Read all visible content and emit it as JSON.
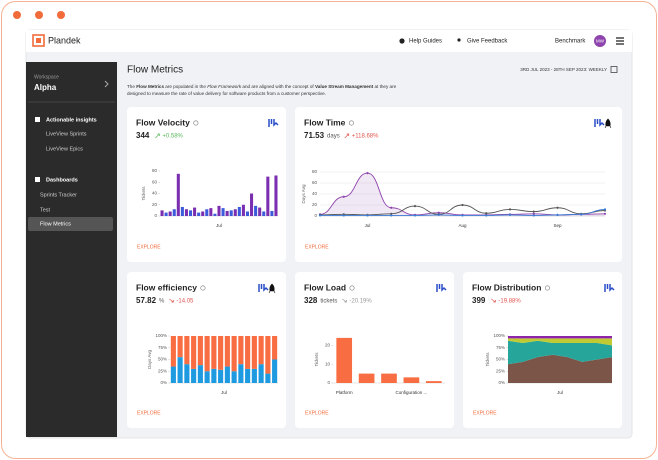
{
  "window": {
    "logo": "Plandek",
    "nav": [
      "Help Guides",
      "Give Feedback"
    ],
    "benchmark": "Benchmark",
    "avatar": "MW"
  },
  "sidebar": {
    "workspace_label": "Workspace",
    "workspace": "Alpha",
    "sections": [
      {
        "title": "Actionable insights",
        "items": [
          "LiveView Sprints",
          "LiveView Epics"
        ]
      },
      {
        "title": "Dashboards",
        "items": [
          "Sprints Tracker",
          "Test",
          "Flow Metrics"
        ]
      }
    ]
  },
  "page": {
    "title": "Flow Metrics",
    "date_range": "3RD JUL 2023 - 28TH SEP 2023: WEEKLY",
    "description": {
      "line1": [
        "The ",
        "Flow Metrics",
        " are populated in the ",
        "Flow Framework",
        " and are aligned with the concept of ",
        "Value Stream Management",
        " at they are"
      ],
      "line2": "designed to measure the rate of value delivery for software products from a customer perspective."
    }
  },
  "cards": [
    {
      "title": "Flow Velocity",
      "value": "344",
      "change": "+0.58%",
      "change_color": "#5cb85c",
      "explore": "EXPLORE",
      "chart": {
        "type": "bar",
        "y_label": "Tickets",
        "x_label": "Jul",
        "ylim": [
          0,
          80
        ],
        "yticks": [
          0,
          20,
          40,
          60,
          80
        ],
        "series": [
          {
            "color": "#7b2fb0",
            "values": [
              10,
              null,
              8,
              null,
              75,
              null,
              12,
              null,
              15,
              null,
              8,
              null,
              14,
              null,
              18,
              null,
              9,
              null,
              12,
              null,
              20,
              null,
              40,
              null,
              15,
              null,
              70,
              null,
              72
            ]
          },
          {
            "color": "#3b5bdb",
            "values": [
              null,
              6,
              null,
              12,
              null,
              16,
              null,
              10,
              null,
              6,
              null,
              12,
              null,
              4,
              null,
              14,
              null,
              10,
              null,
              16,
              null,
              8,
              null,
              18,
              null,
              8,
              null,
              9,
              null
            ]
          }
        ]
      }
    },
    {
      "title": "Flow Time",
      "value": "71.53",
      "unit": "days",
      "change": "+118.68%",
      "change_color": "#e0554f",
      "explore": "EXPLORE",
      "chart": {
        "type": "line",
        "y_label": "Days Avg",
        "ylim": [
          0,
          80
        ],
        "yticks": [
          0,
          20,
          40,
          60,
          80
        ],
        "grid": true,
        "categories": [
          null,
          null,
          "Jul",
          null,
          null,
          null,
          "Aug",
          null,
          null,
          null,
          "Sep",
          null,
          null
        ],
        "series": [
          {
            "color": "#8e44ad",
            "area": true,
            "values": [
              3,
              35,
              78,
              15,
              2,
              6,
              2,
              2,
              3,
              4,
              2,
              3,
              4
            ]
          },
          {
            "color": "#555555",
            "values": [
              2,
              3,
              2,
              4,
              18,
              3,
              20,
              5,
              12,
              8,
              15,
              4,
              10
            ]
          },
          {
            "color": "#3b7dd8",
            "values": [
              1,
              1,
              1,
              1,
              1,
              2,
              1,
              1,
              2,
              1,
              2,
              3,
              12
            ]
          }
        ]
      }
    },
    {
      "title": "Flow efficiency",
      "value": "57.82",
      "unit": "%",
      "change": "-14.05",
      "change_color": "#e0554f",
      "explore": "EXPLORE",
      "chart": {
        "type": "stacked_bar",
        "y_label": "Days Avg",
        "x_label": "Jul",
        "ylim": [
          0,
          100
        ],
        "yticks": [
          {
            "value": 0,
            "label": "0%"
          },
          {
            "value": 25,
            "label": "25%"
          },
          {
            "value": 50,
            "label": "50%"
          },
          {
            "value": 75,
            "label": "75%"
          },
          {
            "value": 100,
            "label": "100%"
          }
        ],
        "series": [
          {
            "color": "#1e9be0",
            "values": [
              35,
              55,
              40,
              30,
              38,
              25,
              30,
              28,
              35,
              25,
              40,
              30,
              30,
              40,
              20,
              50
            ]
          },
          {
            "color": "#f96d43",
            "values": [
              65,
              45,
              60,
              70,
              62,
              75,
              70,
              72,
              65,
              75,
              60,
              70,
              70,
              60,
              80,
              50
            ]
          }
        ]
      }
    },
    {
      "title": "Flow Load",
      "value": "328",
      "unit": "tickets",
      "change": "-20.19%",
      "change_color": "#999999",
      "explore": "EXPLORE",
      "chart": {
        "type": "bar",
        "y_label": "Tickets",
        "ylim": [
          0,
          25
        ],
        "yticks": [
          0,
          10,
          20
        ],
        "categories": [
          "Platform",
          null,
          null,
          "Configuration ...",
          null
        ],
        "series": [
          {
            "color": "#f96d43",
            "values": [
              24,
              5,
              5,
              3,
              1
            ]
          }
        ]
      }
    },
    {
      "title": "Flow Distribution",
      "value": "399",
      "change": "-19.88%",
      "change_color": "#e0554f",
      "explore": "EXPLORE",
      "chart": {
        "type": "stacked_area",
        "y_label": "Tickets",
        "x_label": "Jul",
        "ylim": [
          0,
          100
        ],
        "yticks": [
          {
            "value": 0,
            "label": "0%"
          },
          {
            "value": 25,
            "label": "25%"
          },
          {
            "value": 50,
            "label": "50%"
          },
          {
            "value": 75,
            "label": "75%"
          },
          {
            "value": 100,
            "label": "100%"
          }
        ],
        "series": [
          {
            "color": "#7a5548",
            "values": [
              40,
              45,
              55,
              60,
              55,
              45,
              50,
              55
            ]
          },
          {
            "color": "#26a69a",
            "values": [
              50,
              40,
              35,
              25,
              30,
              40,
              35,
              25
            ]
          },
          {
            "color": "#c0ca33",
            "values": [
              5,
              10,
              5,
              10,
              10,
              10,
              10,
              15
            ]
          },
          {
            "color": "#8e24aa",
            "values": [
              5,
              5,
              5,
              5,
              5,
              5,
              5,
              5
            ]
          }
        ]
      }
    }
  ]
}
